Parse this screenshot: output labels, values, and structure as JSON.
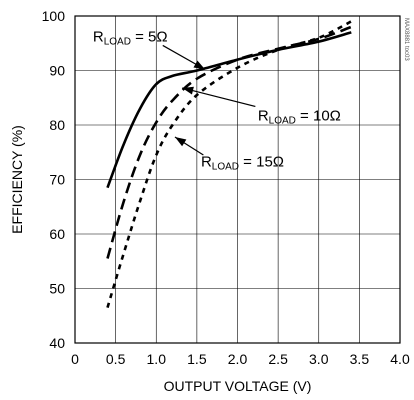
{
  "chart_data": {
    "type": "line",
    "title": "",
    "xlabel": "OUTPUT VOLTAGE (V)",
    "ylabel": "EFFICIENCY (%)",
    "xlim": [
      0,
      4.0
    ],
    "ylim": [
      40,
      100
    ],
    "grid": true,
    "x_ticks": [
      0,
      0.5,
      1.0,
      1.5,
      2.0,
      2.5,
      3.0,
      3.5,
      4.0
    ],
    "x_tick_labels": [
      "0",
      "0.5",
      "1.0",
      "1.5",
      "2.0",
      "2.5",
      "3.0",
      "3.5",
      "4.0"
    ],
    "y_ticks": [
      40,
      50,
      60,
      70,
      80,
      90,
      100
    ],
    "y_tick_labels": [
      "40",
      "50",
      "60",
      "70",
      "80",
      "90",
      "100"
    ],
    "series": [
      {
        "name": "RLOAD = 5Ω",
        "style": "solid",
        "x": [
          0.4,
          0.6,
          0.8,
          1.0,
          1.2,
          1.5,
          2.0,
          2.5,
          3.0,
          3.4
        ],
        "y": [
          68.5,
          76.5,
          83,
          87.5,
          89,
          90,
          92,
          93.8,
          95.3,
          97
        ]
      },
      {
        "name": "RLOAD = 10Ω",
        "style": "dashed",
        "x": [
          0.4,
          0.6,
          0.8,
          1.0,
          1.2,
          1.5,
          2.0,
          2.5,
          3.0,
          3.4
        ],
        "y": [
          55.5,
          66,
          74.5,
          80.5,
          84.5,
          88.5,
          92,
          94,
          95.8,
          98
        ]
      },
      {
        "name": "RLOAD = 15Ω",
        "style": "dotted",
        "x": [
          0.4,
          0.6,
          0.8,
          1.0,
          1.2,
          1.5,
          2.0,
          2.5,
          3.0,
          3.4
        ],
        "y": [
          46.5,
          56.5,
          66,
          74.5,
          80,
          85.5,
          90.5,
          93.8,
          96,
          99
        ]
      }
    ],
    "annotations": [
      {
        "prefix": "R",
        "sub": "LOAD",
        "suffix": " = 5Ω"
      },
      {
        "prefix": "R",
        "sub": "LOAD",
        "suffix": " = 10Ω"
      },
      {
        "prefix": "R",
        "sub": "LOAD",
        "suffix": " = 15Ω"
      }
    ],
    "watermark": "MAX8881 toc03"
  }
}
